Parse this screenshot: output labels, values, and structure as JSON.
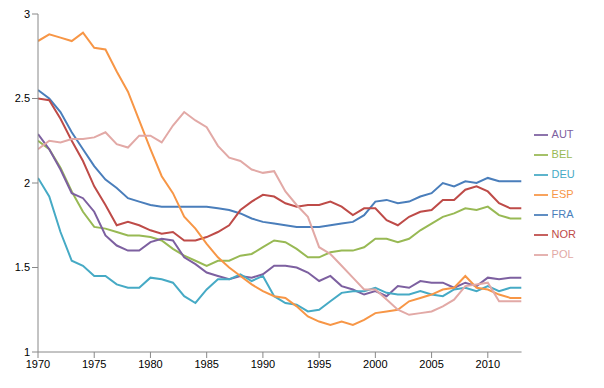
{
  "chart_data": {
    "type": "line",
    "x": [
      1970,
      1971,
      1972,
      1973,
      1974,
      1975,
      1976,
      1977,
      1978,
      1979,
      1980,
      1981,
      1982,
      1983,
      1984,
      1985,
      1986,
      1987,
      1988,
      1989,
      1990,
      1991,
      1992,
      1993,
      1994,
      1995,
      1996,
      1997,
      1998,
      1999,
      2000,
      2001,
      2002,
      2003,
      2004,
      2005,
      2006,
      2007,
      2008,
      2009,
      2010,
      2011,
      2012,
      2013
    ],
    "series": [
      {
        "name": "FRA",
        "color": "#4a7ebb",
        "values": [
          2.55,
          2.5,
          2.42,
          2.3,
          2.2,
          2.1,
          2.02,
          1.97,
          1.91,
          1.89,
          1.87,
          1.86,
          1.86,
          1.86,
          1.86,
          1.86,
          1.85,
          1.84,
          1.82,
          1.79,
          1.77,
          1.76,
          1.75,
          1.74,
          1.74,
          1.74,
          1.75,
          1.76,
          1.77,
          1.81,
          1.89,
          1.9,
          1.88,
          1.89,
          1.92,
          1.94,
          2.0,
          1.98,
          2.01,
          2.0,
          2.03,
          2.01,
          2.01,
          2.01
        ]
      },
      {
        "name": "NOR",
        "color": "#be4b48",
        "values": [
          2.5,
          2.49,
          2.38,
          2.25,
          2.13,
          1.98,
          1.87,
          1.75,
          1.77,
          1.75,
          1.72,
          1.7,
          1.71,
          1.66,
          1.66,
          1.68,
          1.71,
          1.75,
          1.84,
          1.89,
          1.93,
          1.92,
          1.88,
          1.86,
          1.87,
          1.87,
          1.89,
          1.86,
          1.81,
          1.85,
          1.85,
          1.78,
          1.75,
          1.8,
          1.83,
          1.84,
          1.9,
          1.9,
          1.96,
          1.98,
          1.95,
          1.88,
          1.85,
          1.85
        ]
      },
      {
        "name": "BEL",
        "color": "#98b954",
        "values": [
          2.25,
          2.2,
          2.09,
          1.95,
          1.83,
          1.74,
          1.73,
          1.71,
          1.69,
          1.69,
          1.68,
          1.66,
          1.61,
          1.57,
          1.54,
          1.51,
          1.54,
          1.54,
          1.57,
          1.58,
          1.62,
          1.66,
          1.65,
          1.61,
          1.56,
          1.56,
          1.59,
          1.6,
          1.6,
          1.62,
          1.67,
          1.67,
          1.65,
          1.67,
          1.72,
          1.76,
          1.8,
          1.82,
          1.85,
          1.84,
          1.86,
          1.81,
          1.79,
          1.79
        ]
      },
      {
        "name": "AUT",
        "color": "#7d60a0",
        "values": [
          2.29,
          2.2,
          2.08,
          1.94,
          1.91,
          1.83,
          1.69,
          1.63,
          1.6,
          1.6,
          1.65,
          1.67,
          1.66,
          1.56,
          1.52,
          1.47,
          1.45,
          1.43,
          1.45,
          1.44,
          1.46,
          1.51,
          1.51,
          1.5,
          1.47,
          1.42,
          1.45,
          1.39,
          1.37,
          1.34,
          1.36,
          1.33,
          1.39,
          1.38,
          1.42,
          1.41,
          1.41,
          1.38,
          1.41,
          1.39,
          1.44,
          1.43,
          1.44,
          1.44
        ]
      },
      {
        "name": "DEU",
        "color": "#46aac5",
        "values": [
          2.03,
          1.92,
          1.71,
          1.54,
          1.51,
          1.45,
          1.45,
          1.4,
          1.38,
          1.38,
          1.44,
          1.43,
          1.41,
          1.33,
          1.29,
          1.37,
          1.43,
          1.43,
          1.46,
          1.42,
          1.45,
          1.33,
          1.29,
          1.28,
          1.24,
          1.25,
          1.3,
          1.35,
          1.36,
          1.36,
          1.38,
          1.35,
          1.34,
          1.34,
          1.36,
          1.34,
          1.33,
          1.37,
          1.38,
          1.36,
          1.39,
          1.36,
          1.38,
          1.38
        ]
      },
      {
        "name": "ESP",
        "color": "#f79646",
        "values": [
          2.84,
          2.88,
          2.86,
          2.84,
          2.89,
          2.8,
          2.79,
          2.66,
          2.54,
          2.37,
          2.2,
          2.04,
          1.94,
          1.8,
          1.73,
          1.64,
          1.56,
          1.5,
          1.45,
          1.4,
          1.36,
          1.33,
          1.32,
          1.27,
          1.21,
          1.18,
          1.16,
          1.18,
          1.16,
          1.19,
          1.23,
          1.24,
          1.25,
          1.3,
          1.32,
          1.34,
          1.37,
          1.38,
          1.45,
          1.38,
          1.37,
          1.34,
          1.32,
          1.32
        ]
      },
      {
        "name": "POL",
        "color": "#e2a9a6",
        "values": [
          2.2,
          2.25,
          2.24,
          2.26,
          2.26,
          2.27,
          2.3,
          2.23,
          2.21,
          2.28,
          2.28,
          2.24,
          2.34,
          2.42,
          2.37,
          2.33,
          2.22,
          2.15,
          2.13,
          2.08,
          2.06,
          2.07,
          1.95,
          1.87,
          1.8,
          1.62,
          1.58,
          1.51,
          1.44,
          1.37,
          1.37,
          1.31,
          1.25,
          1.22,
          1.23,
          1.24,
          1.27,
          1.31,
          1.39,
          1.4,
          1.41,
          1.3,
          1.3,
          1.3
        ]
      }
    ],
    "xlim": [
      1970,
      2013
    ],
    "xticks": [
      1970,
      1975,
      1980,
      1985,
      1990,
      1995,
      2000,
      2005,
      2010
    ],
    "ylim": [
      1,
      3
    ],
    "yticks": [
      1,
      1.5,
      2,
      2.5,
      3
    ],
    "grid": false,
    "legend": "right"
  }
}
